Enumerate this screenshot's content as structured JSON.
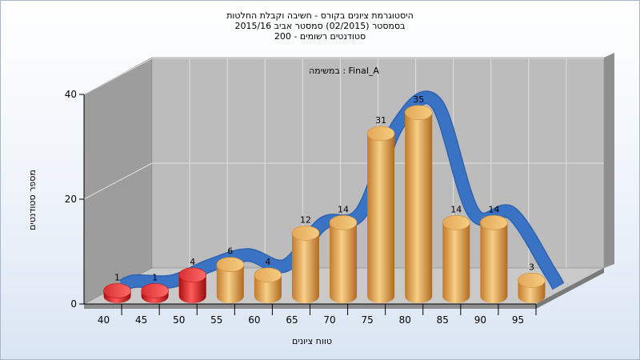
{
  "chart_data": {
    "type": "bar",
    "title_lines": [
      "היסטוגרמת ציונים בקורס - חשיבה וקבלת החלטות",
      "בסמסטר  (02/2015)  סמסטר אביב 2015/16",
      "סטודנטים רשומים - 200"
    ],
    "annotation": "במשימה : Final_A",
    "xlabel": "טווח ציונים",
    "ylabel": "מספר סטודנטים",
    "x_tick_labels": [
      "40",
      "45",
      "50",
      "55",
      "60",
      "65",
      "70",
      "75",
      "80",
      "85",
      "90",
      "95"
    ],
    "y_tick_labels": [
      "0",
      "20",
      "40"
    ],
    "ylim": [
      0,
      40
    ],
    "categories": [
      "40",
      "45",
      "50",
      "55",
      "60",
      "65",
      "70",
      "75",
      "80",
      "85",
      "90",
      "95"
    ],
    "values": [
      1,
      1,
      4,
      6,
      4,
      12,
      14,
      31,
      35,
      14,
      14,
      3
    ],
    "failing_categories": [
      "40",
      "45",
      "50"
    ],
    "curve": "smoothed distribution ribbon",
    "grid": true,
    "three_d": true,
    "colors": {
      "fail_bar": "#d42020",
      "pass_bar": "#e8a24c",
      "curve": "#3a72c4",
      "back_wall": "#b8b8b8",
      "side_wall": "#9a9a9a",
      "floor": "#c8c8c8"
    }
  }
}
